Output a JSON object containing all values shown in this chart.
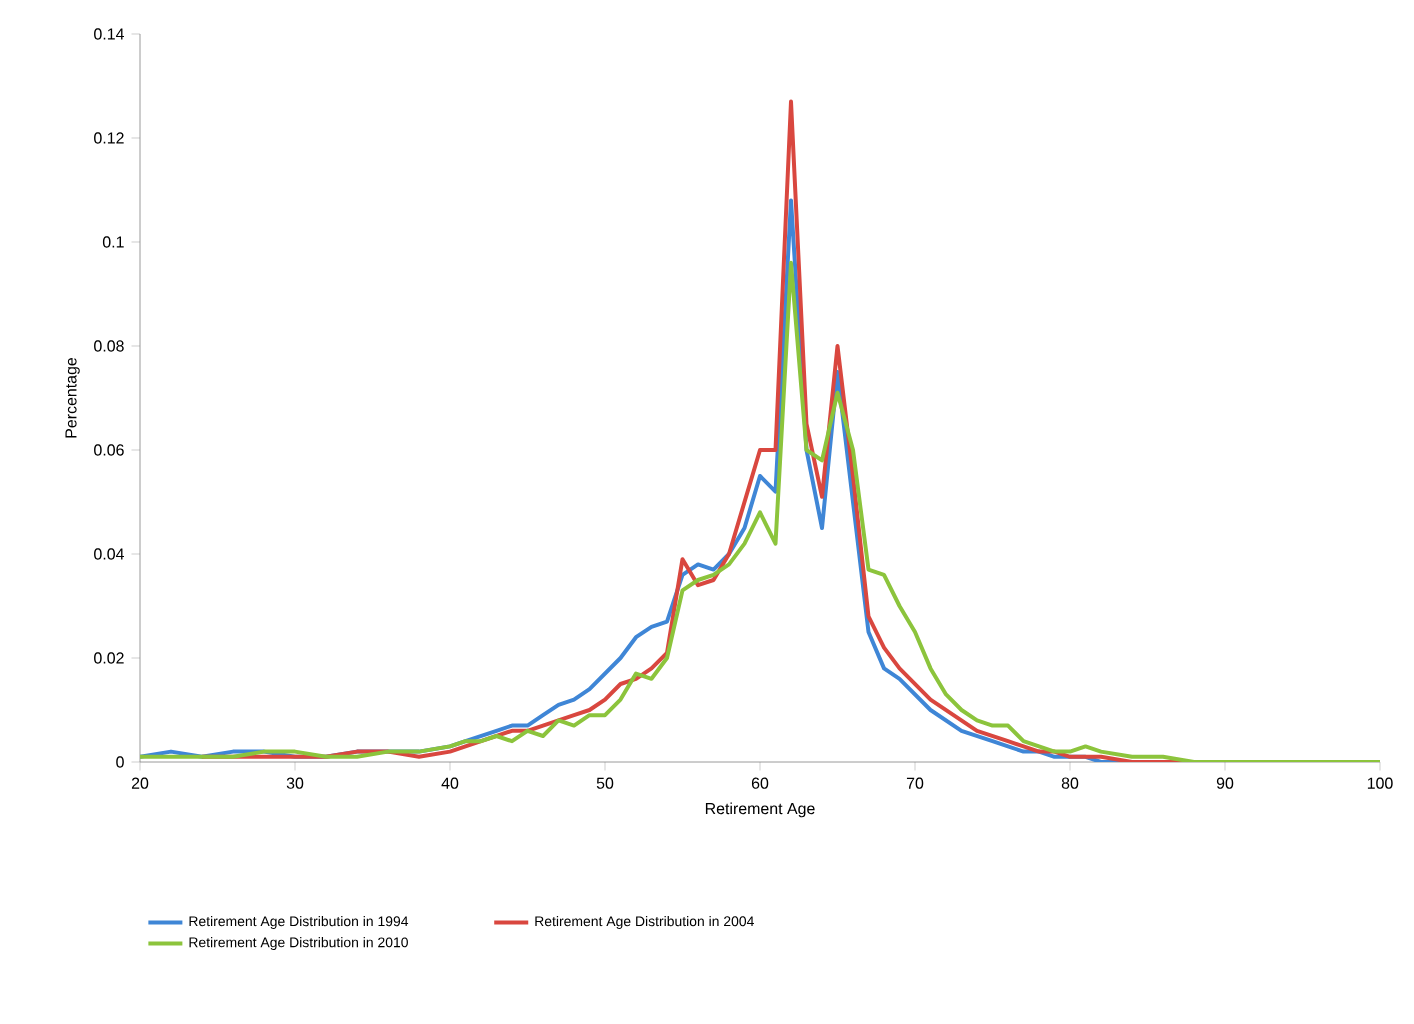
{
  "chart_data": {
    "type": "line",
    "xlabel": "Retirement Age",
    "ylabel": "Percentage",
    "xlim": [
      20,
      100
    ],
    "ylim": [
      0,
      0.14
    ],
    "xticks": [
      20,
      30,
      40,
      50,
      60,
      70,
      80,
      90,
      100
    ],
    "yticks": [
      0,
      0.02,
      0.04,
      0.06,
      0.08,
      0.1,
      0.12,
      0.14
    ],
    "legend": "bottom",
    "marker": "none",
    "line_style": "solid",
    "x": [
      20,
      22,
      24,
      26,
      28,
      30,
      32,
      34,
      36,
      38,
      40,
      41,
      42,
      43,
      44,
      45,
      46,
      47,
      48,
      49,
      50,
      51,
      52,
      53,
      54,
      55,
      56,
      57,
      58,
      59,
      60,
      61,
      62,
      63,
      64,
      65,
      66,
      67,
      68,
      69,
      70,
      71,
      72,
      73,
      74,
      75,
      76,
      77,
      78,
      79,
      80,
      81,
      82,
      84,
      86,
      88,
      90,
      95,
      100
    ],
    "series": [
      {
        "name": "Retirement Age Distribution in 1994",
        "color": "#3f86d6",
        "values": [
          0.001,
          0.002,
          0.001,
          0.002,
          0.002,
          0.001,
          0.001,
          0.002,
          0.002,
          0.002,
          0.003,
          0.004,
          0.005,
          0.006,
          0.007,
          0.007,
          0.009,
          0.011,
          0.012,
          0.014,
          0.017,
          0.02,
          0.024,
          0.026,
          0.027,
          0.036,
          0.038,
          0.037,
          0.04,
          0.045,
          0.055,
          0.052,
          0.108,
          0.06,
          0.045,
          0.075,
          0.05,
          0.025,
          0.018,
          0.016,
          0.013,
          0.01,
          0.008,
          0.006,
          0.005,
          0.004,
          0.003,
          0.002,
          0.002,
          0.001,
          0.001,
          0.001,
          0,
          0,
          0,
          null,
          null,
          null,
          null
        ]
      },
      {
        "name": "Retirement Age Distribution in 2004",
        "color": "#d9473f",
        "values": [
          null,
          null,
          0.001,
          0.001,
          0.001,
          0.001,
          0.001,
          0.002,
          0.002,
          0.001,
          0.002,
          0.003,
          0.004,
          0.005,
          0.006,
          0.006,
          0.007,
          0.008,
          0.009,
          0.01,
          0.012,
          0.015,
          0.016,
          0.018,
          0.021,
          0.039,
          0.034,
          0.035,
          0.04,
          0.05,
          0.06,
          0.06,
          0.127,
          0.065,
          0.051,
          0.08,
          0.055,
          0.028,
          0.022,
          0.018,
          0.015,
          0.012,
          0.01,
          0.008,
          0.006,
          0.005,
          0.004,
          0.003,
          0.002,
          0.002,
          0.001,
          0.001,
          0.001,
          0,
          0,
          0,
          0,
          null,
          null
        ]
      },
      {
        "name": "Retirement Age Distribution in 2010",
        "color": "#8cc43c",
        "values": [
          0.001,
          0.001,
          0.001,
          0.001,
          0.002,
          0.002,
          0.001,
          0.001,
          0.002,
          0.002,
          0.003,
          0.004,
          0.004,
          0.005,
          0.004,
          0.006,
          0.005,
          0.008,
          0.007,
          0.009,
          0.009,
          0.012,
          0.017,
          0.016,
          0.02,
          0.033,
          0.035,
          0.036,
          0.038,
          0.042,
          0.048,
          0.042,
          0.096,
          0.06,
          0.058,
          0.071,
          0.06,
          0.037,
          0.036,
          0.03,
          0.025,
          0.018,
          0.013,
          0.01,
          0.008,
          0.007,
          0.007,
          0.004,
          0.003,
          0.002,
          0.002,
          0.003,
          0.002,
          0.001,
          0.001,
          0,
          0,
          0,
          0
        ]
      }
    ]
  }
}
